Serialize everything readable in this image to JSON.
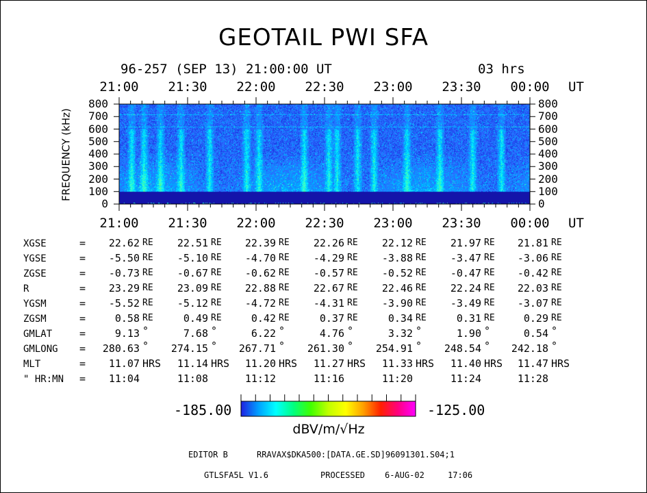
{
  "header": {
    "title": "GEOTAIL PWI SFA",
    "subtitle": "96-257 (SEP 13) 21:00:00 UT",
    "duration": "03 hrs"
  },
  "chart_data": {
    "type": "heatmap",
    "title": "GEOTAIL PWI SFA",
    "x_unit": "UT",
    "x_ticks": [
      "21:00",
      "21:30",
      "22:00",
      "22:30",
      "23:00",
      "23:30",
      "00:00"
    ],
    "ylabel": "FREQUENCY (kHz)",
    "ylim": [
      0,
      800
    ],
    "y_ticks": [
      0,
      100,
      200,
      300,
      400,
      500,
      600,
      700,
      800
    ],
    "colorscale": {
      "min": -185.0,
      "max": -125.0,
      "min_label": "-185.00",
      "max_label": "-125.00",
      "unit": "dBV/m/√Hz",
      "colors": [
        "#2020e0",
        "#00a0ff",
        "#00ffff",
        "#00ff80",
        "#40ff00",
        "#c0ff00",
        "#ffff00",
        "#ffa000",
        "#ff2000",
        "#ff0080",
        "#ff00ff"
      ]
    }
  },
  "ephemeris": {
    "rows": [
      {
        "label": "XGSE",
        "eq": "=",
        "values": [
          "22.62",
          "22.51",
          "22.39",
          "22.26",
          "22.12",
          "21.97",
          "21.81"
        ],
        "unit": "RE"
      },
      {
        "label": "YGSE",
        "eq": "=",
        "values": [
          "-5.50",
          "-5.10",
          "-4.70",
          "-4.29",
          "-3.88",
          "-3.47",
          "-3.06"
        ],
        "unit": "RE"
      },
      {
        "label": "ZGSE",
        "eq": "=",
        "values": [
          "-0.73",
          "-0.67",
          "-0.62",
          "-0.57",
          "-0.52",
          "-0.47",
          "-0.42"
        ],
        "unit": "RE"
      },
      {
        "label": "R",
        "eq": "=",
        "values": [
          "23.29",
          "23.09",
          "22.88",
          "22.67",
          "22.46",
          "22.24",
          "22.03"
        ],
        "unit": "RE"
      },
      {
        "label": "YGSM",
        "eq": "=",
        "values": [
          "-5.52",
          "-5.12",
          "-4.72",
          "-4.31",
          "-3.90",
          "-3.49",
          "-3.07"
        ],
        "unit": "RE"
      },
      {
        "label": "ZGSM",
        "eq": "=",
        "values": [
          "0.58",
          "0.49",
          "0.42",
          "0.37",
          "0.34",
          "0.31",
          "0.29"
        ],
        "unit": "RE"
      },
      {
        "label": "GMLAT",
        "eq": "=",
        "values": [
          "9.13",
          "7.68",
          "6.22",
          "4.76",
          "3.32",
          "1.90",
          "0.54"
        ],
        "unit": "°"
      },
      {
        "label": "GMLONG",
        "eq": "=",
        "values": [
          "280.63",
          "274.15",
          "267.71",
          "261.30",
          "254.91",
          "248.54",
          "242.18"
        ],
        "unit": "°"
      },
      {
        "label": "MLT",
        "eq": "=",
        "values": [
          "11.07",
          "11.14",
          "11.20",
          "11.27",
          "11.33",
          "11.40",
          "11.47"
        ],
        "unit": "HRS"
      },
      {
        "label": "\" HR:MN",
        "eq": "=",
        "values": [
          "11:04",
          "11:08",
          "11:12",
          "11:16",
          "11:20",
          "11:24",
          "11:28"
        ],
        "unit": ""
      }
    ]
  },
  "footer": {
    "editor": "EDITOR B",
    "path": "RRAVAX$DKA500:[DATA.GE.SD]96091301.S04;1",
    "program": "GTLSFA5L V1.6",
    "processed_label": "PROCESSED",
    "processed_date": "6-AUG-02",
    "processed_time": "17:06"
  }
}
